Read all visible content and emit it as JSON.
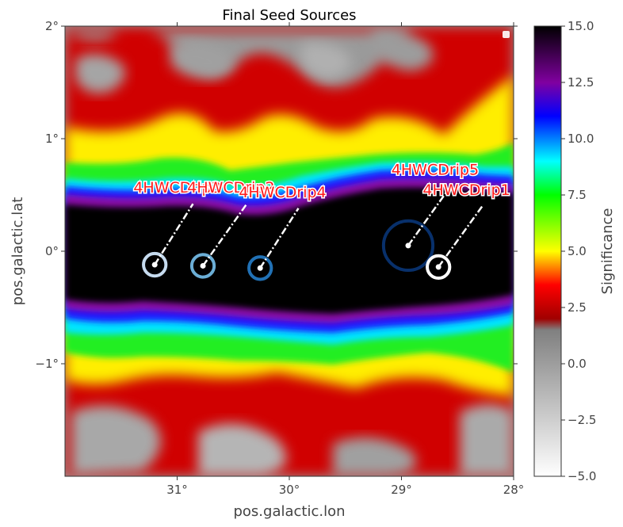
{
  "chart_data": {
    "type": "heatmap",
    "title": "Final Seed Sources",
    "xlabel": "pos.galactic.lon",
    "ylabel": "pos.galactic.lat",
    "colorbar_label": "Significance",
    "xlim": [
      32.0,
      28.0
    ],
    "ylim": [
      -2.0,
      2.0
    ],
    "x_ticks": [
      {
        "value": 31,
        "label": "31°"
      },
      {
        "value": 30,
        "label": "30°"
      },
      {
        "value": 29,
        "label": "29°"
      },
      {
        "value": 28,
        "label": "28°"
      }
    ],
    "y_ticks": [
      {
        "value": 2,
        "label": "2°"
      },
      {
        "value": 1,
        "label": "1°"
      },
      {
        "value": 0,
        "label": "0°"
      },
      {
        "value": -1,
        "label": "−1°"
      }
    ],
    "colorbar_range": [
      -5.0,
      15.0
    ],
    "colorbar_ticks": [
      {
        "value": 15,
        "label": "15.0"
      },
      {
        "value": 12.5,
        "label": "12.5"
      },
      {
        "value": 10,
        "label": "10.0"
      },
      {
        "value": 7.5,
        "label": "7.5"
      },
      {
        "value": 5,
        "label": "5.0"
      },
      {
        "value": 2.5,
        "label": "2.5"
      },
      {
        "value": 0,
        "label": "0.0"
      },
      {
        "value": -2.5,
        "label": "−2.5"
      },
      {
        "value": -5,
        "label": "−5.0"
      }
    ],
    "colormap": [
      {
        "value": -5.0,
        "color": "#ffffff"
      },
      {
        "value": 1.5,
        "color": "#808080"
      },
      {
        "value": 2.0,
        "color": "#a00000"
      },
      {
        "value": 3.5,
        "color": "#ff0000"
      },
      {
        "value": 5.0,
        "color": "#ffff00"
      },
      {
        "value": 7.5,
        "color": "#00ff00"
      },
      {
        "value": 9.0,
        "color": "#00ffff"
      },
      {
        "value": 11.0,
        "color": "#0000ff"
      },
      {
        "value": 12.5,
        "color": "#8000a0"
      },
      {
        "value": 15.0,
        "color": "#000000"
      }
    ],
    "sources": [
      {
        "name": "4HWCDrip3",
        "lon": 31.2,
        "lat": -0.12,
        "radius_deg": 0.1,
        "label": "4HWCDrip3",
        "color": "#c6dbef",
        "label_lon": 31.0,
        "label_lat": 0.52
      },
      {
        "name": "4HWCDrip2",
        "lon": 30.77,
        "lat": -0.13,
        "radius_deg": 0.1,
        "label": "4HWCDrip2",
        "color": "#6baed6",
        "label_lon": 30.52,
        "label_lat": 0.52
      },
      {
        "name": "4HWCDrip4",
        "lon": 30.26,
        "lat": -0.15,
        "radius_deg": 0.1,
        "label": "4HWCDrip4",
        "color": "#2171b5",
        "label_lon": 30.06,
        "label_lat": 0.48
      },
      {
        "name": "4HWCDrip5",
        "lon": 28.94,
        "lat": 0.05,
        "radius_deg": 0.22,
        "label": "4HWCDrip5",
        "color": "#08306b",
        "label_lon": 28.7,
        "label_lat": 0.68
      },
      {
        "name": "4HWCDrip1",
        "lon": 28.67,
        "lat": -0.14,
        "radius_deg": 0.1,
        "label": "4HWCDrip1",
        "color": "#ffffff",
        "label_lon": 28.42,
        "label_lat": 0.5
      }
    ],
    "band": {
      "center_lat": -0.1,
      "description": "high-significance Galactic plane emission"
    }
  }
}
